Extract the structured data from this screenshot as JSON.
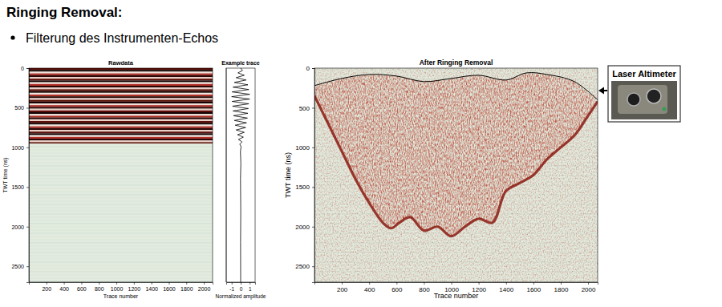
{
  "slide": {
    "heading": "Ringing Removal:",
    "bullet": "Filterung des Instrumenten-Echos",
    "photo_label": "Laser Altimeter"
  },
  "chart_data": [
    {
      "type": "radargram",
      "title": "Rawdata",
      "x_label": "Trace number",
      "y_label": "TWT time (ns)",
      "xlim": [
        0,
        2100
      ],
      "xticks": [
        200,
        400,
        600,
        800,
        1000,
        1200,
        1400,
        1600,
        1800,
        2000
      ],
      "ylim": [
        0,
        2700
      ],
      "yticks": [
        0,
        500,
        1000,
        1500,
        2000,
        2500
      ],
      "ringing": [
        0,
        950
      ]
    },
    {
      "type": "line",
      "title": "Example trace",
      "x_label": "Normalized amplitude",
      "orientation": "horizontal",
      "xlim": [
        -1.6,
        1.6
      ],
      "xticks": [
        -1,
        0,
        1
      ],
      "ylim": [
        0,
        2700
      ],
      "tick_labels": "x",
      "color": "#000000",
      "time": [
        0,
        30,
        60,
        90,
        120,
        150,
        180,
        210,
        240,
        270,
        300,
        330,
        360,
        390,
        420,
        450,
        480,
        510,
        540,
        570,
        600,
        630,
        660,
        690,
        720,
        750,
        780,
        810,
        840,
        870,
        900,
        930,
        960,
        990,
        1050,
        1200,
        1400,
        1800,
        2200,
        2700
      ],
      "values": [
        0,
        0.2,
        -0.3,
        0.4,
        -0.5,
        0.6,
        -0.7,
        0.8,
        -0.85,
        0.9,
        -0.95,
        1,
        -1,
        1,
        -0.95,
        0.9,
        -0.9,
        0.85,
        -0.85,
        0.8,
        -0.8,
        0.75,
        -0.7,
        0.65,
        -0.6,
        0.55,
        -0.5,
        0.4,
        -0.35,
        0.3,
        -0.25,
        0.15,
        -0.1,
        0.05,
        -0.03,
        0.02,
        -0.02,
        0.01,
        -0.01,
        0
      ]
    },
    {
      "type": "radargram",
      "title": "After Ringing Removal",
      "x_label": "Trace number",
      "y_label": "TWT time (ns)",
      "xlim": [
        0,
        2070
      ],
      "xticks": [
        200,
        400,
        600,
        800,
        1000,
        1200,
        1400,
        1600,
        1800,
        2000
      ],
      "ylim": [
        0,
        2700
      ],
      "yticks": [
        0,
        500,
        1000,
        1500,
        2000,
        2500
      ],
      "series": [
        {
          "color": "#000000",
          "x": [
            0,
            200,
            400,
            600,
            800,
            1000,
            1200,
            1400,
            1550,
            1700,
            1900,
            2070
          ],
          "values": [
            220,
            130,
            80,
            100,
            170,
            130,
            90,
            150,
            60,
            80,
            170,
            400
          ]
        },
        {
          "color": "#8b1a10",
          "x": [
            0,
            100,
            200,
            300,
            400,
            500,
            560,
            620,
            700,
            800,
            900,
            1000,
            1100,
            1200,
            1300,
            1400,
            1500,
            1600,
            1700,
            1800,
            1900,
            2000,
            2070
          ],
          "values": [
            350,
            700,
            1050,
            1400,
            1700,
            1950,
            2020,
            1950,
            1880,
            2050,
            2000,
            2120,
            2000,
            1900,
            1950,
            1550,
            1450,
            1350,
            1150,
            1000,
            850,
            600,
            420
          ]
        }
      ]
    }
  ]
}
